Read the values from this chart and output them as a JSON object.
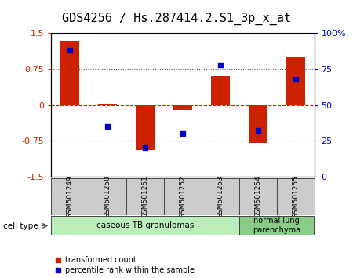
{
  "title": "GDS4256 / Hs.287414.2.S1_3p_x_at",
  "samples": [
    "GSM501249",
    "GSM501250",
    "GSM501251",
    "GSM501252",
    "GSM501253",
    "GSM501254",
    "GSM501255"
  ],
  "transformed_count": [
    1.35,
    0.02,
    -0.95,
    -0.1,
    0.6,
    -0.8,
    1.0
  ],
  "percentile_rank": [
    88,
    35,
    20,
    30,
    78,
    32,
    68
  ],
  "ylim_left": [
    -1.5,
    1.5
  ],
  "ylim_right": [
    0,
    100
  ],
  "yticks_left": [
    -1.5,
    -0.75,
    0,
    0.75,
    1.5
  ],
  "yticks_right": [
    0,
    25,
    50,
    75,
    100
  ],
  "ytick_labels_left": [
    "-1.5",
    "-0.75",
    "0",
    "0.75",
    "1.5"
  ],
  "ytick_labels_right": [
    "0",
    "25",
    "50",
    "75",
    "100%"
  ],
  "bar_color": "#cc2200",
  "dot_color": "#0000cc",
  "hline_color": "#555555",
  "cell_types": [
    {
      "label": "caseous TB granulomas",
      "n_samples": 5,
      "color": "#bbeebb"
    },
    {
      "label": "normal lung\nparenchyma",
      "n_samples": 2,
      "color": "#88cc88"
    }
  ],
  "cell_type_label": "cell type",
  "legend_bar_label": "transformed count",
  "legend_dot_label": "percentile rank within the sample",
  "title_fontsize": 11,
  "tick_fontsize": 8,
  "label_fontsize": 6.5,
  "ct_fontsize": 7.5,
  "legend_fontsize": 7,
  "bar_width": 0.5,
  "sample_label_bg": "#cccccc"
}
